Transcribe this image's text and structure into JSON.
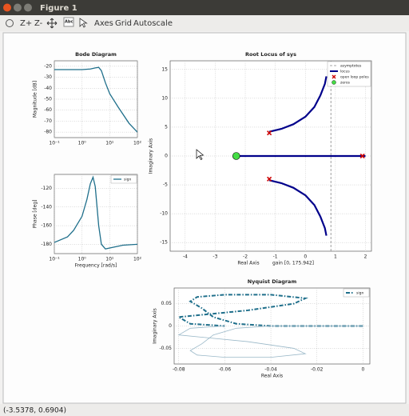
{
  "window": {
    "title": "Figure 1"
  },
  "toolbar": {
    "buttons": [
      "Z+",
      "Z-",
      "Abc",
      "Axes",
      "Grid",
      "Autoscale"
    ]
  },
  "status": "(-3.5378, 0.6904)",
  "chart_data": [
    {
      "type": "line",
      "title": "Bode Diagram",
      "ylabel": "Magnitude [dB]",
      "xscale": "log",
      "grid": true,
      "xlim": [
        0.1,
        100
      ],
      "xticks": [
        {
          "value": 0.1,
          "label": "10⁻¹"
        },
        {
          "value": 1,
          "label": "10⁰"
        },
        {
          "value": 10,
          "label": "10¹"
        },
        {
          "value": 100,
          "label": "10²"
        }
      ],
      "ylim": [
        -85,
        -15
      ],
      "yticks": [
        -80,
        -70,
        -60,
        -50,
        -40,
        -30,
        -20
      ],
      "series": [
        {
          "color": "#1f6f8b",
          "linewidth": 1.3,
          "x": [
            0.1,
            0.3,
            1,
            2,
            3,
            4,
            5,
            7,
            10,
            20,
            50,
            100
          ],
          "values": [
            -23,
            -23,
            -23,
            -22.5,
            -21.5,
            -21,
            -24,
            -35,
            -45,
            -57,
            -72,
            -80
          ]
        }
      ]
    },
    {
      "type": "line",
      "ylabel": "Phase [deg]",
      "xlabel": "Frequency [rad/s]",
      "xscale": "log",
      "grid": true,
      "legend": "upper right",
      "xlim": [
        0.1,
        100
      ],
      "xticks": [
        {
          "value": 0.1,
          "label": "10⁻¹"
        },
        {
          "value": 1,
          "label": "10⁰"
        },
        {
          "value": 10,
          "label": "10¹"
        },
        {
          "value": 100,
          "label": "10²"
        }
      ],
      "ylim": [
        -190,
        -105
      ],
      "yticks": [
        -180,
        -160,
        -140,
        -120
      ],
      "series": [
        {
          "name": "sign",
          "color": "#1f6f8b",
          "linewidth": 1.3,
          "x": [
            0.1,
            0.3,
            0.5,
            1,
            1.5,
            2,
            2.5,
            3,
            4,
            5,
            7,
            10,
            30,
            100
          ],
          "values": [
            -178,
            -172,
            -165,
            -150,
            -132,
            -115,
            -108,
            -118,
            -160,
            -180,
            -185,
            -184,
            -181,
            -180
          ]
        }
      ]
    },
    {
      "type": "line",
      "title": "Root Locus of sys",
      "xlabel": "Real Axis",
      "annotation": "gain   [0, 175.942]",
      "ylabel": "Imaginary Axis",
      "grid": true,
      "legend": "upper right",
      "xlim": [
        -4.5,
        2.2
      ],
      "xticks": [
        -4,
        -3,
        -2,
        -1,
        0,
        1,
        2
      ],
      "ylim": [
        -16.5,
        16.5
      ],
      "yticks": [
        -15,
        -10,
        -5,
        0,
        5,
        10,
        15
      ],
      "series": [
        {
          "name": "asymptotes",
          "color": "#888888",
          "linewidth": 0.8,
          "dash": "dashed",
          "x": [
            0.85,
            0.85
          ],
          "values": [
            -16.5,
            16.5
          ]
        },
        {
          "name": "locus",
          "color": "#00008b",
          "linewidth": 2.2,
          "x": [
            -1.2,
            -0.8,
            -0.4,
            0,
            0.3,
            0.5,
            0.65,
            0.7,
            null,
            -1.2,
            -0.8,
            -0.4,
            0,
            0.3,
            0.5,
            0.65,
            0.7,
            null,
            -2.3,
            2
          ],
          "values": [
            4.2,
            4.7,
            5.5,
            6.8,
            8.5,
            10.5,
            12.5,
            13.8,
            null,
            -4.2,
            -4.7,
            -5.5,
            -6.8,
            -8.5,
            -10.5,
            -12.5,
            -13.8,
            null,
            0,
            0
          ]
        },
        {
          "name": "open loop poles",
          "color": "#cc0000",
          "marker": "x",
          "x": [
            -1.2,
            -1.2,
            1.9
          ],
          "values": [
            4,
            -4,
            0
          ]
        },
        {
          "name": "zeros",
          "color": "#44dd44",
          "marker": "o",
          "x": [
            -2.3
          ],
          "values": [
            0
          ]
        }
      ]
    },
    {
      "type": "line",
      "title": "Nyquist Diagram",
      "xlabel": "Real Axis",
      "ylabel": "Imaginary Axis",
      "grid": true,
      "legend": "upper right",
      "xlim": [
        -0.082,
        0.003
      ],
      "xticks": [
        -0.08,
        -0.06,
        -0.04,
        -0.02,
        0
      ],
      "ylim": [
        -0.085,
        0.085
      ],
      "yticks": [
        -0.05,
        0,
        0.05
      ],
      "series": [
        {
          "name": "sign",
          "color": "#1f6f8b",
          "linewidth": 2,
          "dash": "dashdot",
          "x": [
            0,
            -0.02,
            -0.04,
            -0.055,
            -0.065,
            -0.07,
            -0.075,
            -0.072,
            -0.06,
            -0.04,
            -0.025,
            -0.03,
            -0.05,
            -0.07,
            -0.08,
            -0.075,
            -0.06
          ],
          "values": [
            0,
            0,
            0,
            0.005,
            0.02,
            0.04,
            0.055,
            0.065,
            0.07,
            0.07,
            0.062,
            0.05,
            0.035,
            0.025,
            0.02,
            0.005,
            0
          ]
        },
        {
          "color": "#9ab8c8",
          "linewidth": 0.8,
          "x": [
            0,
            -0.02,
            -0.04,
            -0.055,
            -0.065,
            -0.07,
            -0.075,
            -0.072,
            -0.06,
            -0.04,
            -0.025,
            -0.03,
            -0.05,
            -0.07,
            -0.08,
            -0.075,
            -0.06
          ],
          "values": [
            0,
            0,
            0,
            -0.005,
            -0.02,
            -0.04,
            -0.055,
            -0.065,
            -0.07,
            -0.07,
            -0.062,
            -0.05,
            -0.035,
            -0.025,
            -0.02,
            -0.005,
            0
          ]
        }
      ]
    }
  ]
}
